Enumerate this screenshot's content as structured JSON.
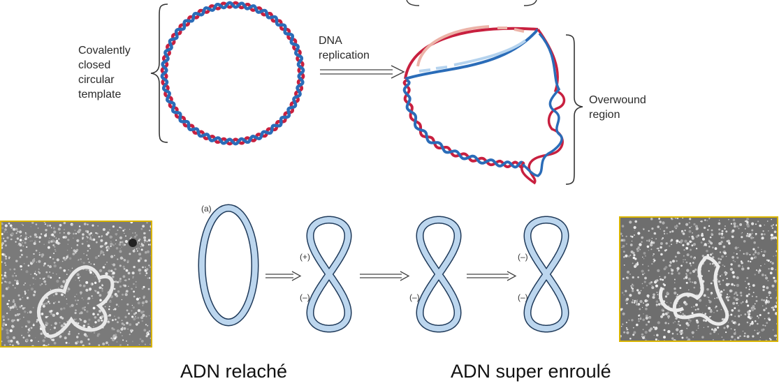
{
  "top": {
    "template_label": "Covalently\nclosed\ncircular\ntemplate",
    "arrow_label": "DNA\nreplication",
    "overwound_label": "Overwound\nregion"
  },
  "bottom": {
    "panel_label": "(a)",
    "sign_plus": "(+)",
    "sign_minus": "(–)"
  },
  "captions": {
    "relaxed": "ADN relaché",
    "supercoiled": "ADN super enroulé"
  },
  "colors": {
    "red": "#c8203f",
    "blue": "#2a6cb8",
    "light_red": "#ecb3a8",
    "light_blue": "#b5d3ee",
    "loop_fill": "#bcd6ee",
    "loop_stroke": "#1f3a5a",
    "photo_border": "#d9b400"
  }
}
